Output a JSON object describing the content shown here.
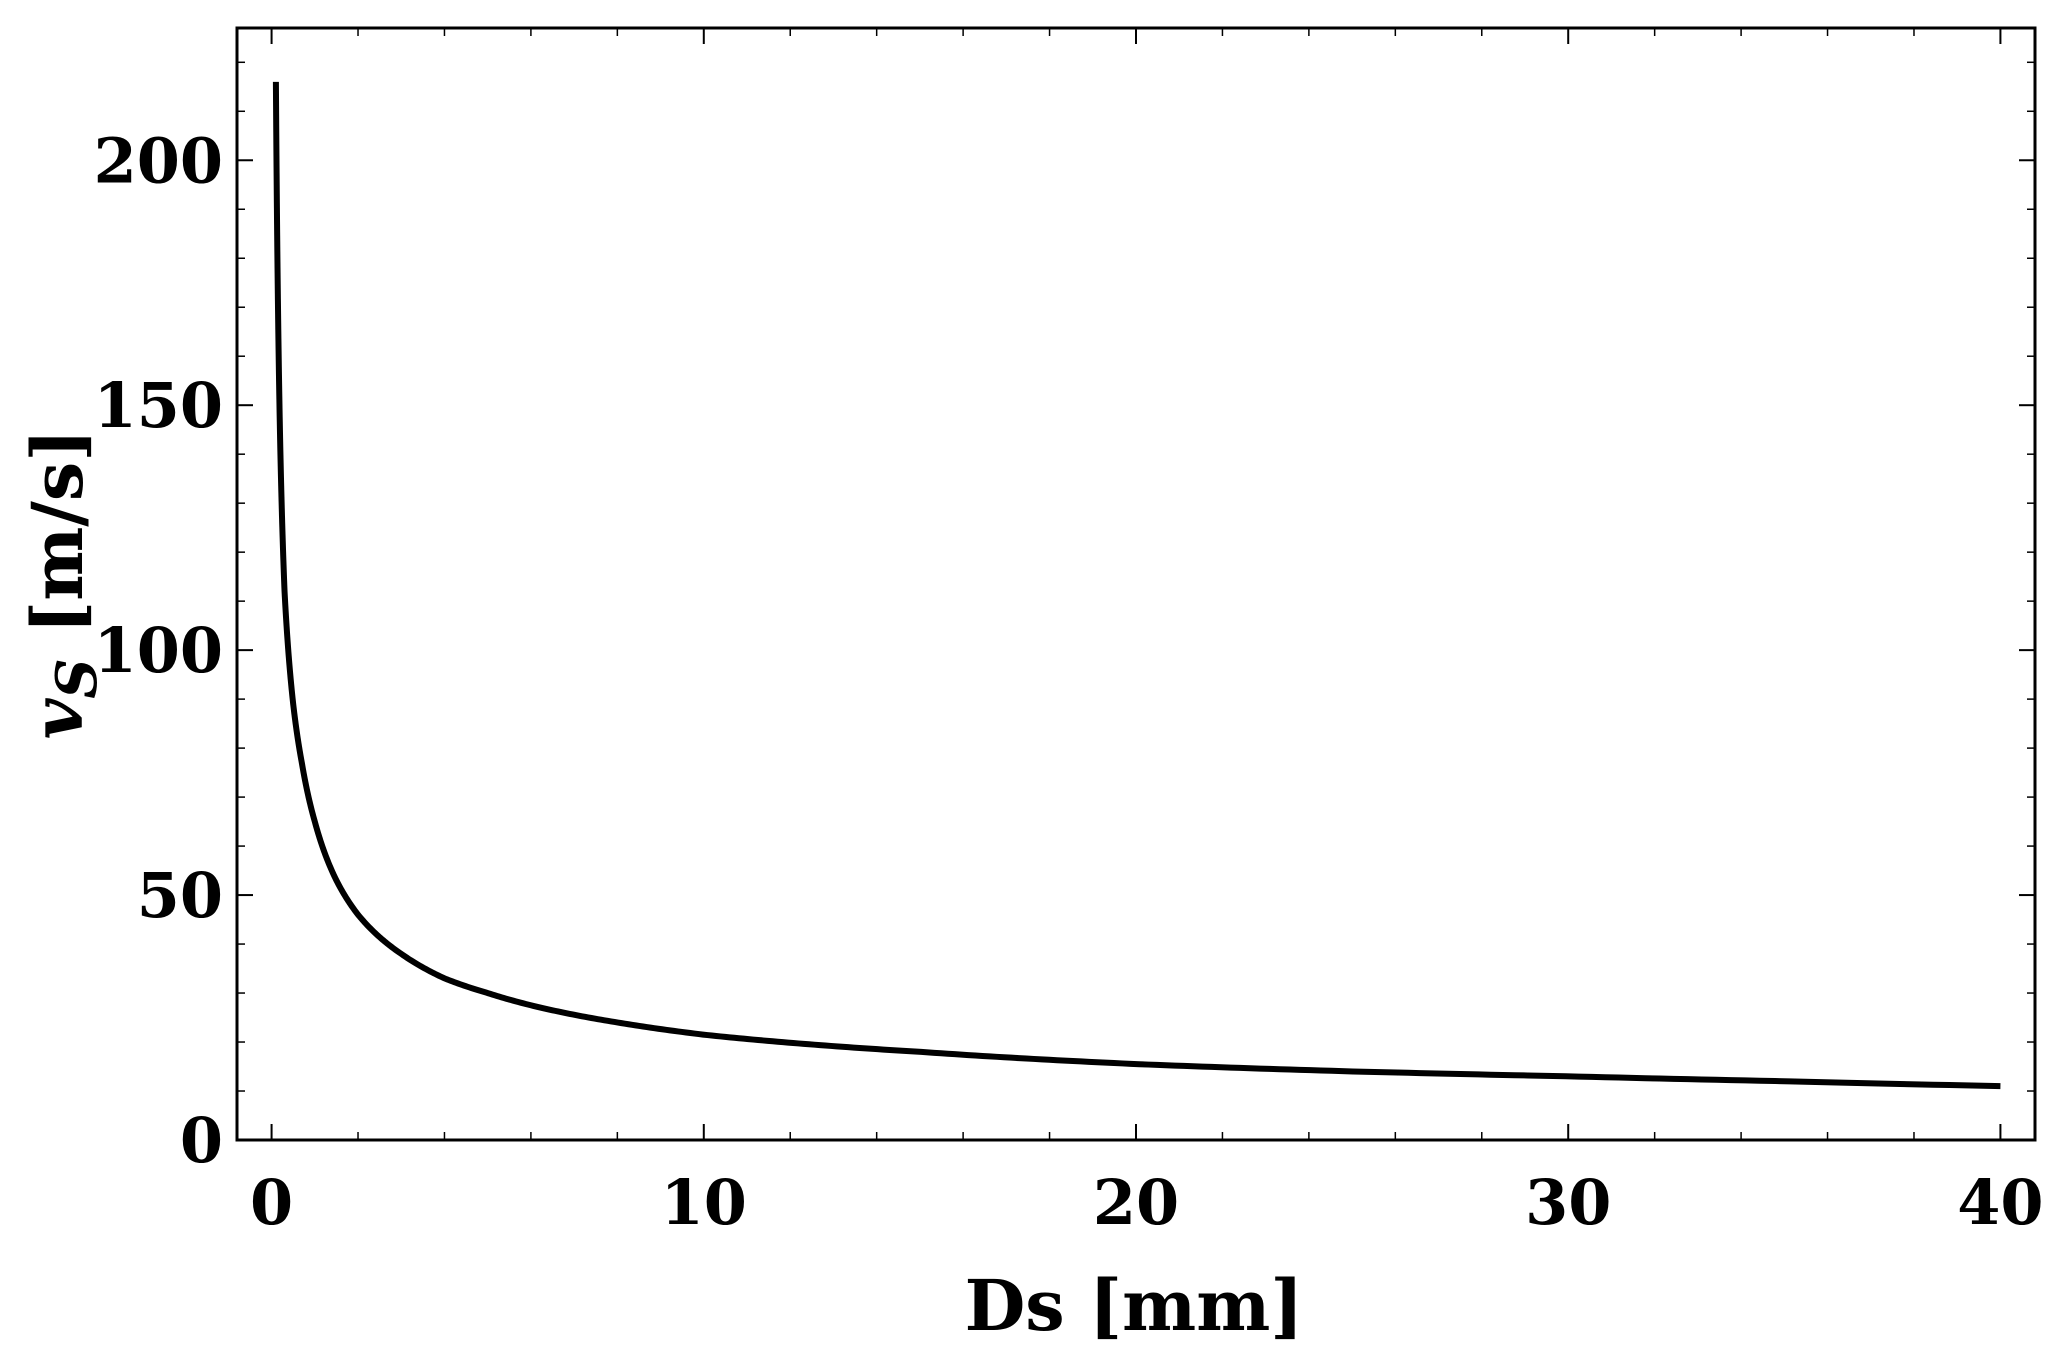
{
  "chart_data": {
    "type": "line",
    "title": "",
    "xlabel": "Ds [mm]",
    "ylabel": {
      "main": "v",
      "subscript": "S",
      "unit": " [m/s]"
    },
    "xlim": [
      -0.8,
      40.8
    ],
    "ylim": [
      0,
      227
    ],
    "xticks": [
      0,
      10,
      20,
      30,
      40
    ],
    "yticks": [
      0,
      50,
      100,
      150,
      200
    ],
    "xtick_labels": [
      "0",
      "10",
      "20",
      "30",
      "40"
    ],
    "ytick_labels": [
      "0",
      "50",
      "100",
      "150",
      "200"
    ],
    "grid": false,
    "legend": "none",
    "line_color": "#000000",
    "series": [
      {
        "x": [
          0.1,
          0.2,
          0.3,
          0.5,
          0.7,
          1.0,
          1.5,
          2.0,
          3.0,
          4.0,
          5.0,
          6.0,
          8.0,
          10.0,
          15.0,
          20.0,
          25.0,
          30.0,
          35.0,
          40.0
        ],
        "y": [
          216,
          142,
          112,
          89,
          77,
          65,
          53,
          46,
          38,
          33,
          30,
          27.5,
          24,
          21.5,
          18,
          15.5,
          14,
          13,
          12,
          11
        ]
      }
    ]
  }
}
